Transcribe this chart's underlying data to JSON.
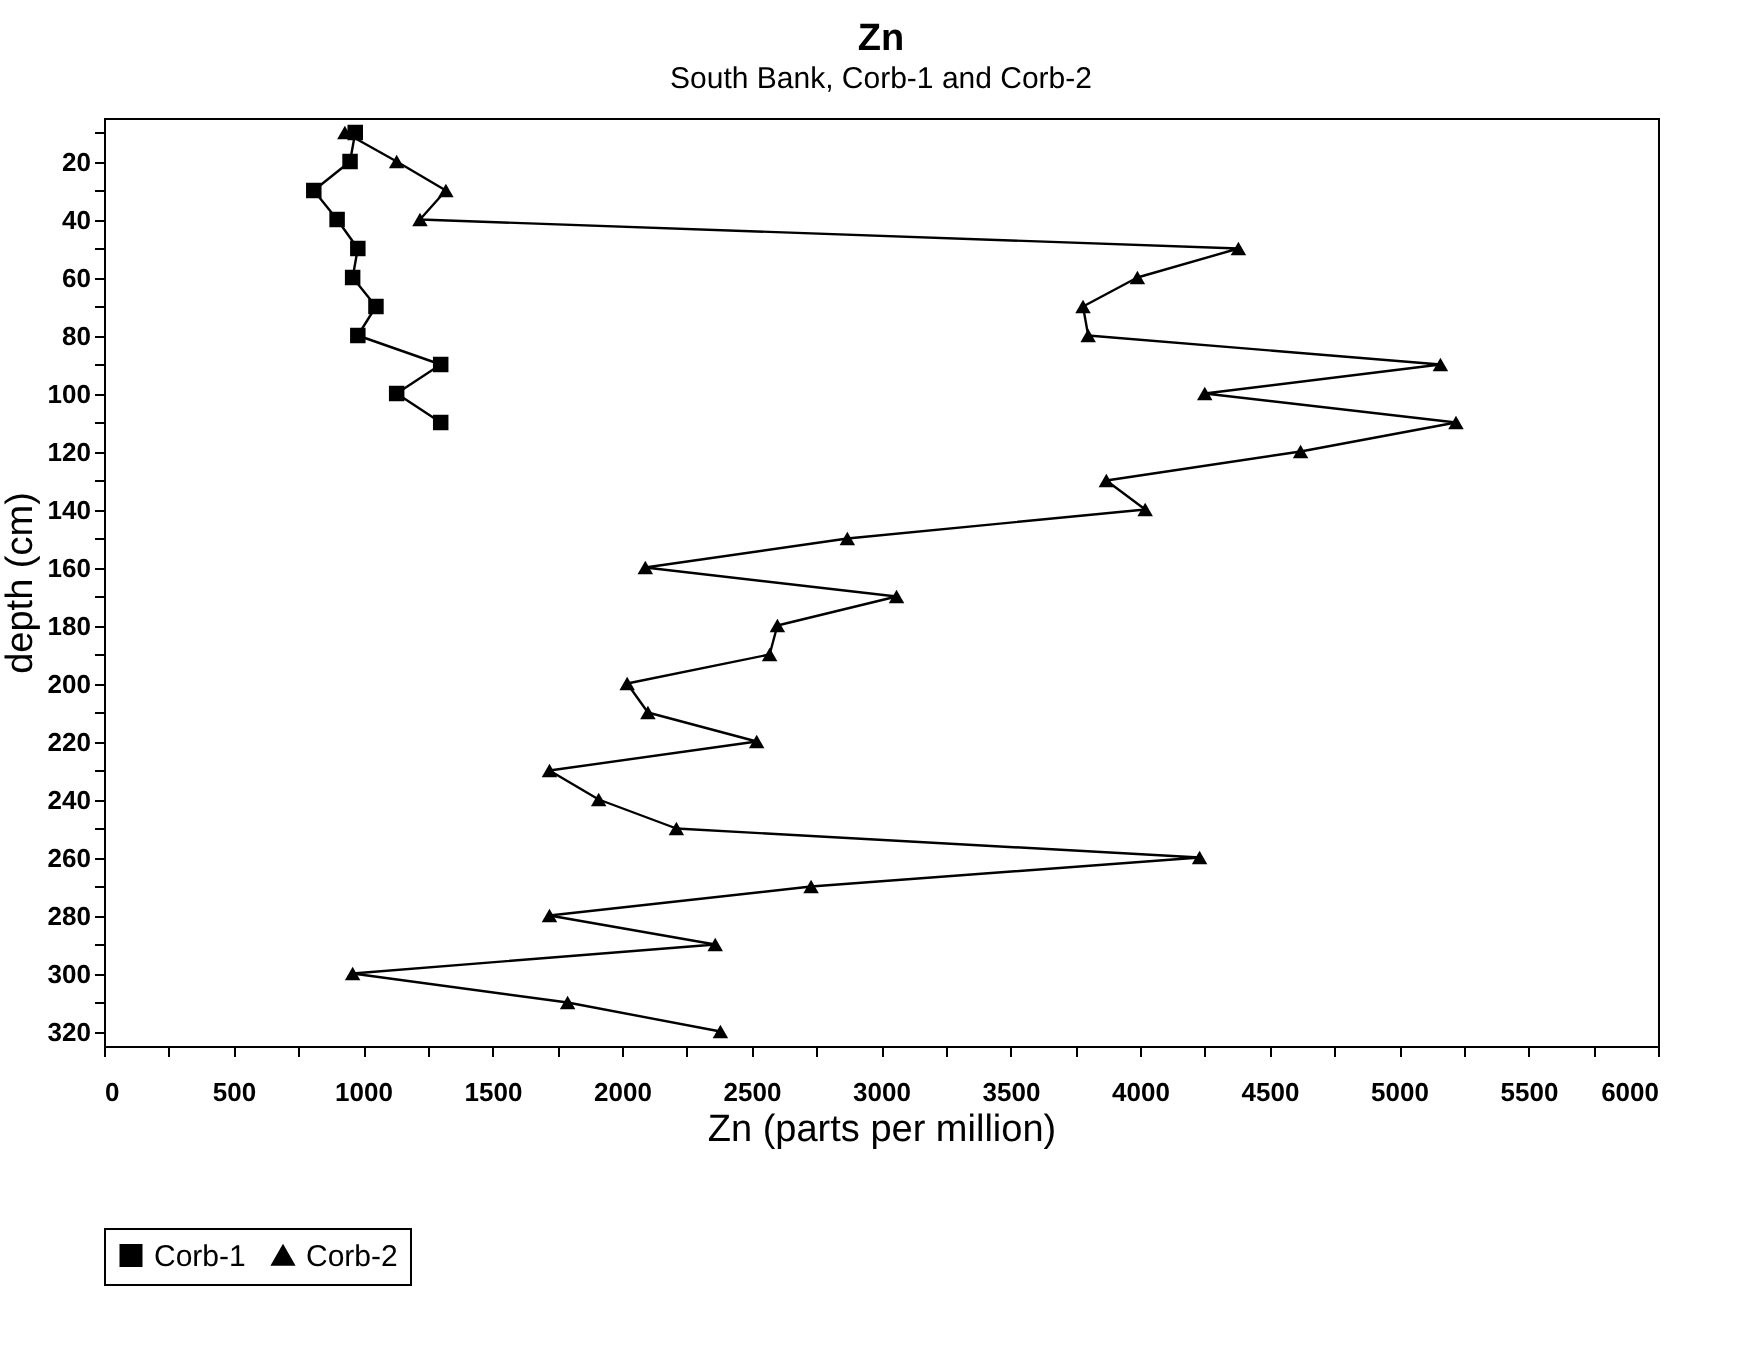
{
  "chart_data": {
    "type": "line",
    "title": "Zn",
    "subtitle": "South Bank, Corb-1 and Corb-2",
    "xlabel": "Zn (parts per million)",
    "ylabel": "depth (cm)",
    "orientation": "horizontal",
    "line_style": "solid",
    "legend": "bottom",
    "grid": false,
    "xlim": [
      0,
      6000
    ],
    "ylim": [
      325,
      5
    ],
    "xticks": [
      0,
      {
        "value": 250,
        "label": null
      },
      500,
      {
        "value": 750,
        "label": null
      },
      1000,
      {
        "value": 1250,
        "label": null
      },
      1500,
      {
        "value": 1750,
        "label": null
      },
      2000,
      {
        "value": 2250,
        "label": null
      },
      2500,
      {
        "value": 2750,
        "label": null
      },
      3000,
      {
        "value": 3250,
        "label": null
      },
      3500,
      {
        "value": 3750,
        "label": null
      },
      4000,
      {
        "value": 4250,
        "label": null
      },
      4500,
      {
        "value": 4750,
        "label": null
      },
      5000,
      {
        "value": 5250,
        "label": null
      },
      5500,
      {
        "value": 5750,
        "label": null
      },
      6000
    ],
    "yticks": [
      {
        "value": 10,
        "label": null
      },
      20,
      {
        "value": 30,
        "label": null
      },
      40,
      {
        "value": 50,
        "label": null
      },
      60,
      {
        "value": 70,
        "label": null
      },
      80,
      {
        "value": 90,
        "label": null
      },
      100,
      {
        "value": 110,
        "label": null
      },
      120,
      {
        "value": 130,
        "label": null
      },
      140,
      {
        "value": 150,
        "label": null
      },
      160,
      {
        "value": 170,
        "label": null
      },
      180,
      {
        "value": 190,
        "label": null
      },
      200,
      {
        "value": 210,
        "label": null
      },
      220,
      {
        "value": 230,
        "label": null
      },
      240,
      {
        "value": 250,
        "label": null
      },
      260,
      {
        "value": 270,
        "label": null
      },
      280,
      {
        "value": 290,
        "label": null
      },
      300,
      {
        "value": 310,
        "label": null
      },
      320
    ],
    "series": [
      {
        "name": "Corb-1",
        "color": "#000000",
        "marker": "square",
        "x": [
          10,
          20,
          30,
          40,
          50,
          60,
          70,
          80,
          90,
          100,
          110
        ],
        "values": [
          970,
          950,
          810,
          900,
          980,
          960,
          1050,
          980,
          1300,
          1130,
          1300
        ]
      },
      {
        "name": "Corb-2",
        "color": "#000000",
        "marker": "triangle",
        "x": [
          10,
          20,
          30,
          40,
          50,
          60,
          70,
          80,
          90,
          100,
          110,
          120,
          130,
          140,
          150,
          160,
          170,
          180,
          190,
          200,
          210,
          220,
          230,
          240,
          250,
          260,
          270,
          280,
          290,
          300,
          310,
          320
        ],
        "values": [
          930,
          1130,
          1320,
          1220,
          4380,
          3990,
          3780,
          3800,
          5160,
          4250,
          5220,
          4620,
          3870,
          4020,
          2870,
          2090,
          3060,
          2600,
          2570,
          2020,
          2100,
          2520,
          1720,
          1910,
          2210,
          4230,
          2730,
          1720,
          2360,
          960,
          1790,
          2380
        ]
      }
    ]
  }
}
